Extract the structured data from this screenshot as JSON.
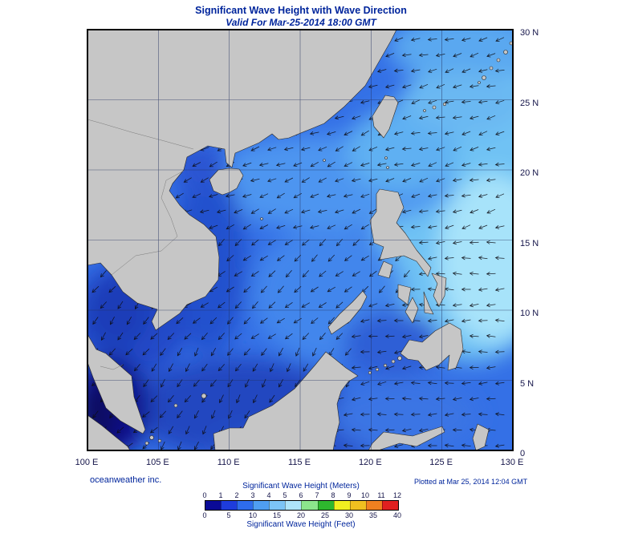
{
  "header": {
    "title": "Significant Wave Height with Wave Direction",
    "subtitle": "Valid For Mar-25-2014 18:00 GMT"
  },
  "map": {
    "lat_labels": [
      "30 N",
      "25 N",
      "20 N",
      "15 N",
      "10 N",
      "5 N",
      "0"
    ],
    "lon_labels": [
      "100 E",
      "105 E",
      "110 E",
      "115 E",
      "120 E",
      "125 E",
      "130 E"
    ]
  },
  "footer": {
    "credit": "oceanweather inc.",
    "plotted": "Plotted at Mar 25, 2014 12:04 GMT"
  },
  "legend": {
    "meters_label": "Significant Wave Height (Meters)",
    "feet_label": "Significant Wave Height (Feet)",
    "meters_ticks": [
      "0",
      "1",
      "2",
      "3",
      "4",
      "5",
      "6",
      "7",
      "8",
      "9",
      "10",
      "11",
      "12"
    ],
    "feet_ticks": [
      "0",
      "5",
      "10",
      "15",
      "20",
      "25",
      "30",
      "35",
      "40"
    ],
    "colors": [
      "#0a0a96",
      "#1e3cdc",
      "#2e6cec",
      "#4f9ef2",
      "#7cc4f6",
      "#aee4fa",
      "#8ce68c",
      "#2eb82e",
      "#f0f020",
      "#f0c020",
      "#f08020",
      "#e02020"
    ]
  }
}
